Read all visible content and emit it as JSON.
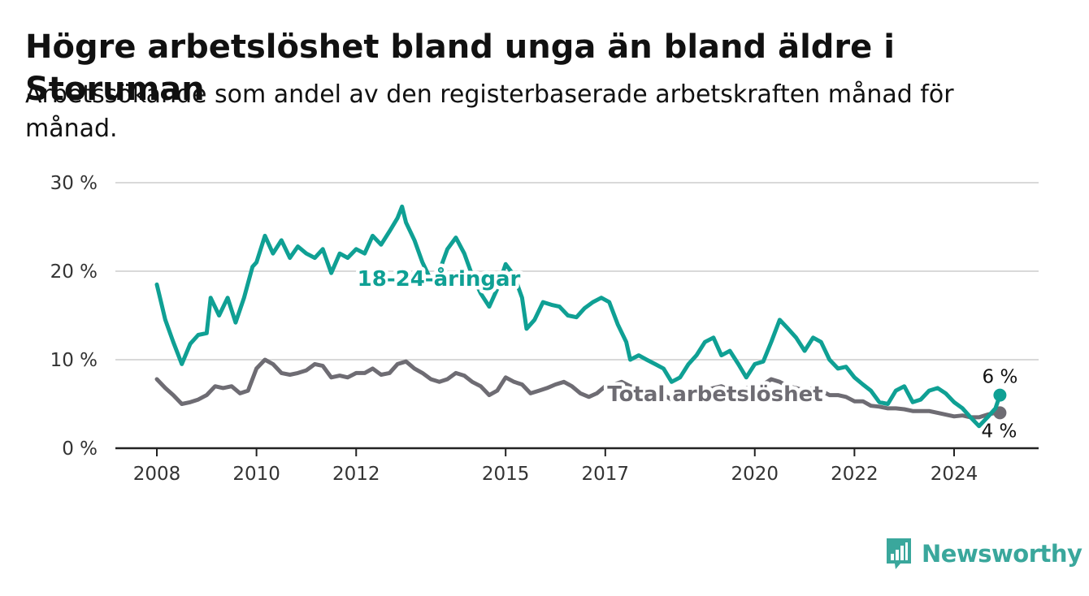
{
  "title": "Högre arbetslöshet bland unga än bland äldre i Storuman",
  "subtitle": "Arbetssökande som andel av den registerbaserade arbetskraften månad för månad.",
  "brand": {
    "name": "Newsworthy"
  },
  "colors": {
    "young": "#0fa094",
    "total": "#6e6c73",
    "grid": "#d9d9d9",
    "axis": "#222222"
  },
  "chart_data": {
    "type": "line",
    "title": "Högre arbetslöshet bland unga än bland äldre i Storuman",
    "xlabel": "",
    "ylabel": "",
    "xlim": [
      2007.6,
      2025.7
    ],
    "ylim": [
      0,
      30
    ],
    "x_ticks": [
      {
        "value": 2008,
        "label": "2008"
      },
      {
        "value": 2010,
        "label": "2010"
      },
      {
        "value": 2012,
        "label": "2012"
      },
      {
        "value": 2015,
        "label": "2015"
      },
      {
        "value": 2017,
        "label": "2017"
      },
      {
        "value": 2020,
        "label": "2020"
      },
      {
        "value": 2022,
        "label": "2022"
      },
      {
        "value": 2024,
        "label": "2024"
      }
    ],
    "y_ticks": [
      {
        "value": 0,
        "label": "0 %"
      },
      {
        "value": 10,
        "label": "10 %"
      },
      {
        "value": 20,
        "label": "20 %"
      },
      {
        "value": 30,
        "label": "30 %"
      }
    ],
    "grid": true,
    "series": [
      {
        "name": "18-24-åringar",
        "color": "#0fa094",
        "end_label": "6 %",
        "points": [
          [
            2008.0,
            18.5
          ],
          [
            2008.17,
            14.5
          ],
          [
            2008.33,
            12.0
          ],
          [
            2008.5,
            9.5
          ],
          [
            2008.67,
            11.8
          ],
          [
            2008.83,
            12.8
          ],
          [
            2009.0,
            13.0
          ],
          [
            2009.08,
            17.0
          ],
          [
            2009.25,
            15.0
          ],
          [
            2009.42,
            17.0
          ],
          [
            2009.58,
            14.2
          ],
          [
            2009.75,
            17.0
          ],
          [
            2009.92,
            20.5
          ],
          [
            2010.0,
            21.0
          ],
          [
            2010.17,
            24.0
          ],
          [
            2010.33,
            22.0
          ],
          [
            2010.5,
            23.5
          ],
          [
            2010.67,
            21.5
          ],
          [
            2010.83,
            22.8
          ],
          [
            2011.0,
            22.0
          ],
          [
            2011.17,
            21.5
          ],
          [
            2011.33,
            22.5
          ],
          [
            2011.5,
            19.8
          ],
          [
            2011.67,
            22.0
          ],
          [
            2011.83,
            21.5
          ],
          [
            2012.0,
            22.5
          ],
          [
            2012.17,
            22.0
          ],
          [
            2012.33,
            24.0
          ],
          [
            2012.5,
            23.0
          ],
          [
            2012.67,
            24.5
          ],
          [
            2012.83,
            26.0
          ],
          [
            2012.92,
            27.3
          ],
          [
            2013.0,
            25.5
          ],
          [
            2013.17,
            23.5
          ],
          [
            2013.33,
            21.0
          ],
          [
            2013.5,
            19.0
          ],
          [
            2013.67,
            20.0
          ],
          [
            2013.83,
            22.5
          ],
          [
            2014.0,
            23.8
          ],
          [
            2014.17,
            22.0
          ],
          [
            2014.33,
            19.5
          ],
          [
            2014.5,
            17.5
          ],
          [
            2014.67,
            16.0
          ],
          [
            2014.83,
            18.0
          ],
          [
            2015.0,
            20.8
          ],
          [
            2015.17,
            19.5
          ],
          [
            2015.33,
            17.0
          ],
          [
            2015.42,
            13.5
          ],
          [
            2015.58,
            14.5
          ],
          [
            2015.75,
            16.5
          ],
          [
            2015.92,
            16.2
          ],
          [
            2016.08,
            16.0
          ],
          [
            2016.25,
            15.0
          ],
          [
            2016.42,
            14.8
          ],
          [
            2016.58,
            15.8
          ],
          [
            2016.75,
            16.5
          ],
          [
            2016.92,
            17.0
          ],
          [
            2017.08,
            16.5
          ],
          [
            2017.25,
            14.0
          ],
          [
            2017.42,
            12.0
          ],
          [
            2017.5,
            10.0
          ],
          [
            2017.67,
            10.5
          ],
          [
            2017.83,
            10.0
          ],
          [
            2018.0,
            9.5
          ],
          [
            2018.17,
            9.0
          ],
          [
            2018.33,
            7.5
          ],
          [
            2018.5,
            8.0
          ],
          [
            2018.67,
            9.5
          ],
          [
            2018.83,
            10.5
          ],
          [
            2019.0,
            12.0
          ],
          [
            2019.17,
            12.5
          ],
          [
            2019.33,
            10.5
          ],
          [
            2019.5,
            11.0
          ],
          [
            2019.67,
            9.5
          ],
          [
            2019.83,
            8.0
          ],
          [
            2020.0,
            9.5
          ],
          [
            2020.17,
            9.8
          ],
          [
            2020.33,
            12.0
          ],
          [
            2020.5,
            14.5
          ],
          [
            2020.67,
            13.5
          ],
          [
            2020.83,
            12.5
          ],
          [
            2021.0,
            11.0
          ],
          [
            2021.17,
            12.5
          ],
          [
            2021.33,
            12.0
          ],
          [
            2021.5,
            10.0
          ],
          [
            2021.67,
            9.0
          ],
          [
            2021.83,
            9.2
          ],
          [
            2022.0,
            8.0
          ],
          [
            2022.17,
            7.2
          ],
          [
            2022.33,
            6.5
          ],
          [
            2022.5,
            5.2
          ],
          [
            2022.67,
            5.0
          ],
          [
            2022.83,
            6.5
          ],
          [
            2023.0,
            7.0
          ],
          [
            2023.17,
            5.2
          ],
          [
            2023.33,
            5.5
          ],
          [
            2023.5,
            6.5
          ],
          [
            2023.67,
            6.8
          ],
          [
            2023.83,
            6.2
          ],
          [
            2024.0,
            5.2
          ],
          [
            2024.17,
            4.5
          ],
          [
            2024.33,
            3.5
          ],
          [
            2024.5,
            2.5
          ],
          [
            2024.67,
            3.5
          ],
          [
            2024.83,
            4.5
          ],
          [
            2024.92,
            6.0
          ]
        ]
      },
      {
        "name": "Total arbetslöshet",
        "color": "#6e6c73",
        "end_label": "4 %",
        "points": [
          [
            2008.0,
            7.8
          ],
          [
            2008.17,
            6.8
          ],
          [
            2008.33,
            6.0
          ],
          [
            2008.5,
            5.0
          ],
          [
            2008.67,
            5.2
          ],
          [
            2008.83,
            5.5
          ],
          [
            2009.0,
            6.0
          ],
          [
            2009.17,
            7.0
          ],
          [
            2009.33,
            6.8
          ],
          [
            2009.5,
            7.0
          ],
          [
            2009.67,
            6.2
          ],
          [
            2009.83,
            6.5
          ],
          [
            2010.0,
            9.0
          ],
          [
            2010.17,
            10.0
          ],
          [
            2010.33,
            9.5
          ],
          [
            2010.5,
            8.5
          ],
          [
            2010.67,
            8.3
          ],
          [
            2010.83,
            8.5
          ],
          [
            2011.0,
            8.8
          ],
          [
            2011.17,
            9.5
          ],
          [
            2011.33,
            9.3
          ],
          [
            2011.5,
            8.0
          ],
          [
            2011.67,
            8.2
          ],
          [
            2011.83,
            8.0
          ],
          [
            2012.0,
            8.5
          ],
          [
            2012.17,
            8.5
          ],
          [
            2012.33,
            9.0
          ],
          [
            2012.5,
            8.3
          ],
          [
            2012.67,
            8.5
          ],
          [
            2012.83,
            9.5
          ],
          [
            2013.0,
            9.8
          ],
          [
            2013.17,
            9.0
          ],
          [
            2013.33,
            8.5
          ],
          [
            2013.5,
            7.8
          ],
          [
            2013.67,
            7.5
          ],
          [
            2013.83,
            7.8
          ],
          [
            2014.0,
            8.5
          ],
          [
            2014.17,
            8.2
          ],
          [
            2014.33,
            7.5
          ],
          [
            2014.5,
            7.0
          ],
          [
            2014.67,
            6.0
          ],
          [
            2014.83,
            6.5
          ],
          [
            2015.0,
            8.0
          ],
          [
            2015.17,
            7.5
          ],
          [
            2015.33,
            7.2
          ],
          [
            2015.5,
            6.2
          ],
          [
            2015.67,
            6.5
          ],
          [
            2015.83,
            6.8
          ],
          [
            2016.0,
            7.2
          ],
          [
            2016.17,
            7.5
          ],
          [
            2016.33,
            7.0
          ],
          [
            2016.5,
            6.2
          ],
          [
            2016.67,
            5.8
          ],
          [
            2016.83,
            6.2
          ],
          [
            2017.0,
            7.0
          ],
          [
            2017.17,
            7.2
          ],
          [
            2017.33,
            7.5
          ],
          [
            2017.5,
            7.0
          ],
          [
            2017.67,
            6.8
          ],
          [
            2017.83,
            6.5
          ],
          [
            2018.0,
            6.2
          ],
          [
            2018.17,
            6.0
          ],
          [
            2018.33,
            5.5
          ],
          [
            2018.5,
            6.0
          ],
          [
            2018.67,
            6.2
          ],
          [
            2018.83,
            6.8
          ],
          [
            2019.0,
            6.5
          ],
          [
            2019.17,
            6.8
          ],
          [
            2019.33,
            7.0
          ],
          [
            2019.5,
            6.5
          ],
          [
            2019.67,
            6.5
          ],
          [
            2019.83,
            6.8
          ],
          [
            2020.0,
            7.0
          ],
          [
            2020.17,
            7.2
          ],
          [
            2020.33,
            7.8
          ],
          [
            2020.5,
            7.5
          ],
          [
            2020.67,
            7.0
          ],
          [
            2020.83,
            6.8
          ],
          [
            2021.0,
            6.5
          ],
          [
            2021.17,
            6.8
          ],
          [
            2021.33,
            6.5
          ],
          [
            2021.5,
            6.0
          ],
          [
            2021.67,
            6.0
          ],
          [
            2021.83,
            5.8
          ],
          [
            2022.0,
            5.3
          ],
          [
            2022.17,
            5.3
          ],
          [
            2022.33,
            4.8
          ],
          [
            2022.5,
            4.7
          ],
          [
            2022.67,
            4.5
          ],
          [
            2022.83,
            4.5
          ],
          [
            2023.0,
            4.4
          ],
          [
            2023.17,
            4.2
          ],
          [
            2023.33,
            4.2
          ],
          [
            2023.5,
            4.2
          ],
          [
            2023.67,
            4.0
          ],
          [
            2023.83,
            3.8
          ],
          [
            2024.0,
            3.6
          ],
          [
            2024.17,
            3.7
          ],
          [
            2024.33,
            3.5
          ],
          [
            2024.5,
            3.5
          ],
          [
            2024.67,
            3.8
          ],
          [
            2024.83,
            4.0
          ],
          [
            2024.92,
            4.0
          ]
        ]
      }
    ]
  }
}
